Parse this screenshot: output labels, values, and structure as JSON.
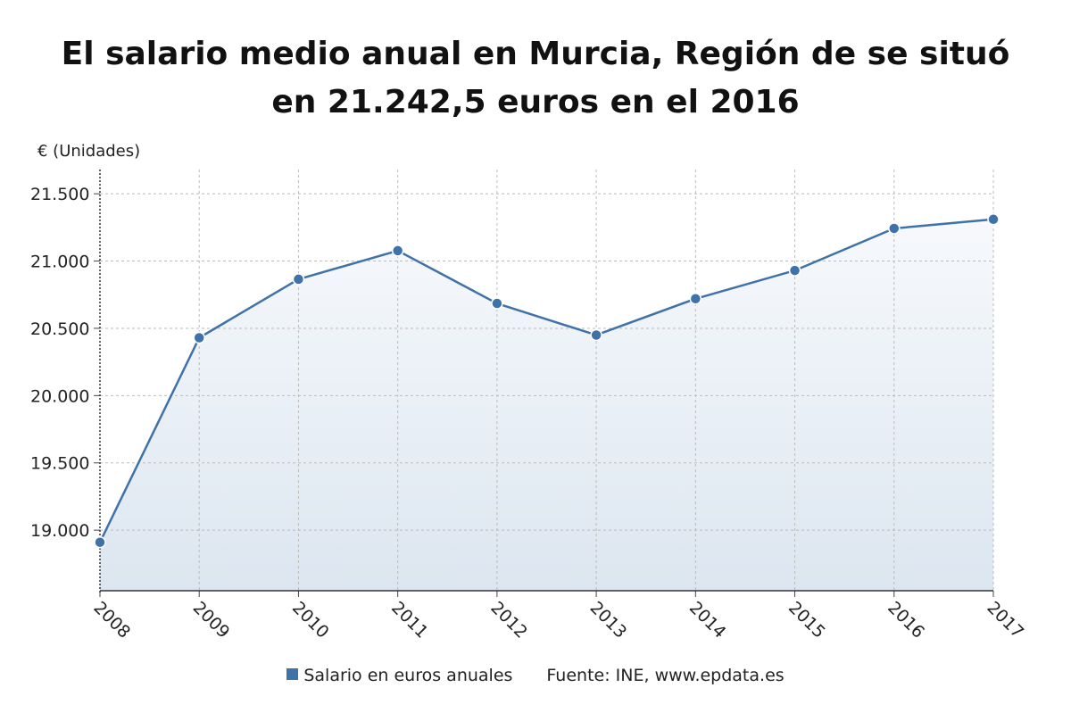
{
  "title": "El salario medio anual en Murcia, Región de se situó en 21.242,5 euros en el 2016",
  "colors": {
    "line": "#3f72a8",
    "marker": "#3f72a8",
    "area_top": "#f7f9fc",
    "area_bottom": "#dce6f0",
    "grid": "#bbbbbb"
  },
  "legend": {
    "series_label": "Salario en euros anuales",
    "source": "Fuente: INE, www.epdata.es"
  },
  "chart_data": {
    "type": "area",
    "ylabel": "€ (Unidades)",
    "xlabel": "",
    "x": [
      "2008",
      "2009",
      "2010",
      "2011",
      "2012",
      "2013",
      "2014",
      "2015",
      "2016",
      "2017"
    ],
    "y_ticks": [
      "19.000",
      "19.500",
      "20.000",
      "20.500",
      "21.000",
      "21.500"
    ],
    "y_tick_values": [
      19000,
      19500,
      20000,
      20500,
      21000,
      21500
    ],
    "ylim": [
      18550,
      21680
    ],
    "series": [
      {
        "name": "Salario en euros anuales",
        "values": [
          18910,
          20430,
          20865,
          21077,
          20685,
          20450,
          20720,
          20930,
          21242.5,
          21310
        ]
      }
    ],
    "grid": true,
    "legend_position": "bottom"
  }
}
